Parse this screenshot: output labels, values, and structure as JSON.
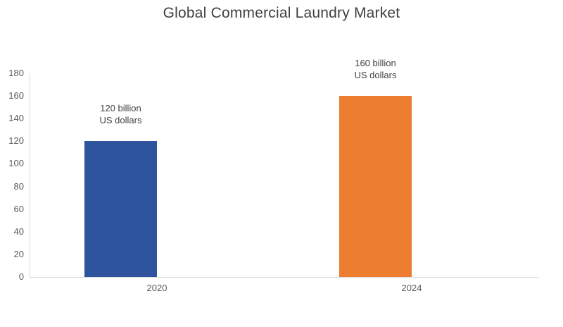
{
  "chart_data": {
    "type": "bar",
    "title": "Global Commercial Laundry Market",
    "categories": [
      "2020",
      "2024"
    ],
    "values": [
      120,
      160
    ],
    "bar_colors": [
      "#2E549D",
      "#ED7D31"
    ],
    "data_labels": [
      [
        "120 billion",
        "US dollars"
      ],
      [
        "160 billion",
        "US dollars"
      ]
    ],
    "xlabel": "",
    "ylabel": "",
    "ylim": [
      0,
      180
    ],
    "yticks": [
      0,
      20,
      40,
      60,
      80,
      100,
      120,
      140,
      160,
      180
    ],
    "grid": false,
    "legend": "none"
  },
  "colors": {
    "background": "#FFFFFF",
    "title": "#404040",
    "tick_label": "#595959",
    "category_label": "#595959",
    "data_label": "#404040",
    "axis_line": "#D9D9D9",
    "bar_2020": "#2E549D",
    "bar_2024": "#ED7D31"
  }
}
